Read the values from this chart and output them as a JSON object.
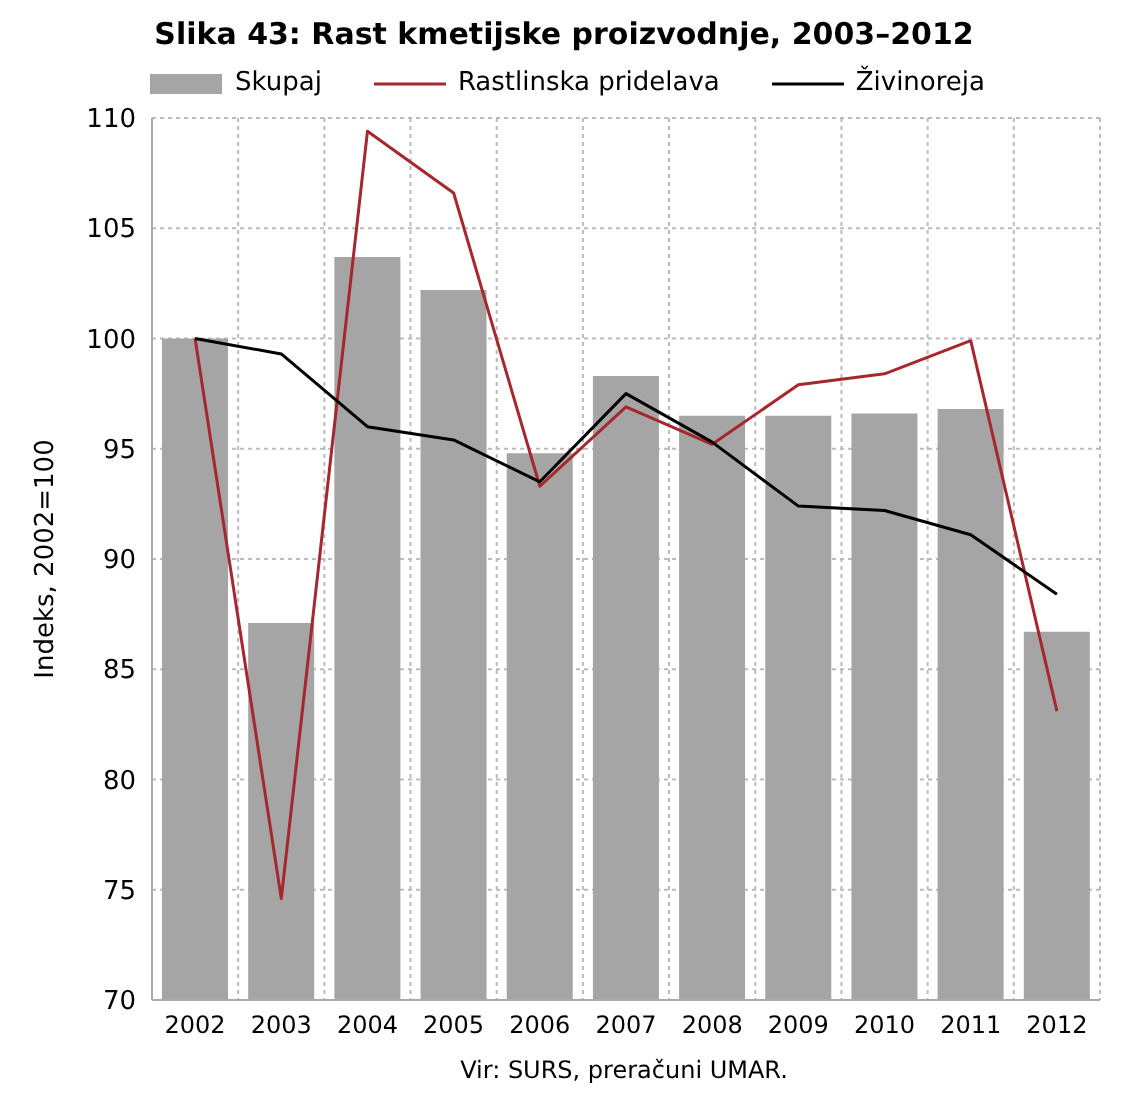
{
  "chart_data": {
    "type": "bar",
    "title": "Slika 43: Rast kmetijske proizvodnje, 2003–2012",
    "ylabel": "Indeks, 2002=100",
    "annotations": [
      "Vir: SURS, preračuni UMAR."
    ],
    "categories": [
      "2002",
      "2003",
      "2004",
      "2005",
      "2006",
      "2007",
      "2008",
      "2009",
      "2010",
      "2011",
      "2012"
    ],
    "series": [
      {
        "name": "Skupaj",
        "color": "#a5a5a5",
        "values": [
          100,
          87.1,
          103.7,
          102.2,
          94.8,
          98.3,
          96.5,
          96.5,
          96.6,
          96.8,
          86.7
        ]
      },
      {
        "name": "Rastlinska pridelava",
        "type": "line",
        "color": "#a6272d",
        "values": [
          100,
          74.6,
          109.4,
          106.6,
          93.3,
          96.9,
          95.2,
          97.9,
          98.4,
          99.9,
          83.1
        ]
      },
      {
        "name": "Živinoreja",
        "type": "line",
        "color": "#000000",
        "values": [
          100,
          99.3,
          96.0,
          95.4,
          93.5,
          97.5,
          95.3,
          92.4,
          92.2,
          91.1,
          88.4
        ]
      }
    ],
    "ylim": [
      70,
      110
    ],
    "yticks": [
      70,
      75,
      80,
      85,
      90,
      95,
      100,
      105,
      110
    ],
    "grid": true,
    "legend": "top",
    "marker": "none"
  }
}
